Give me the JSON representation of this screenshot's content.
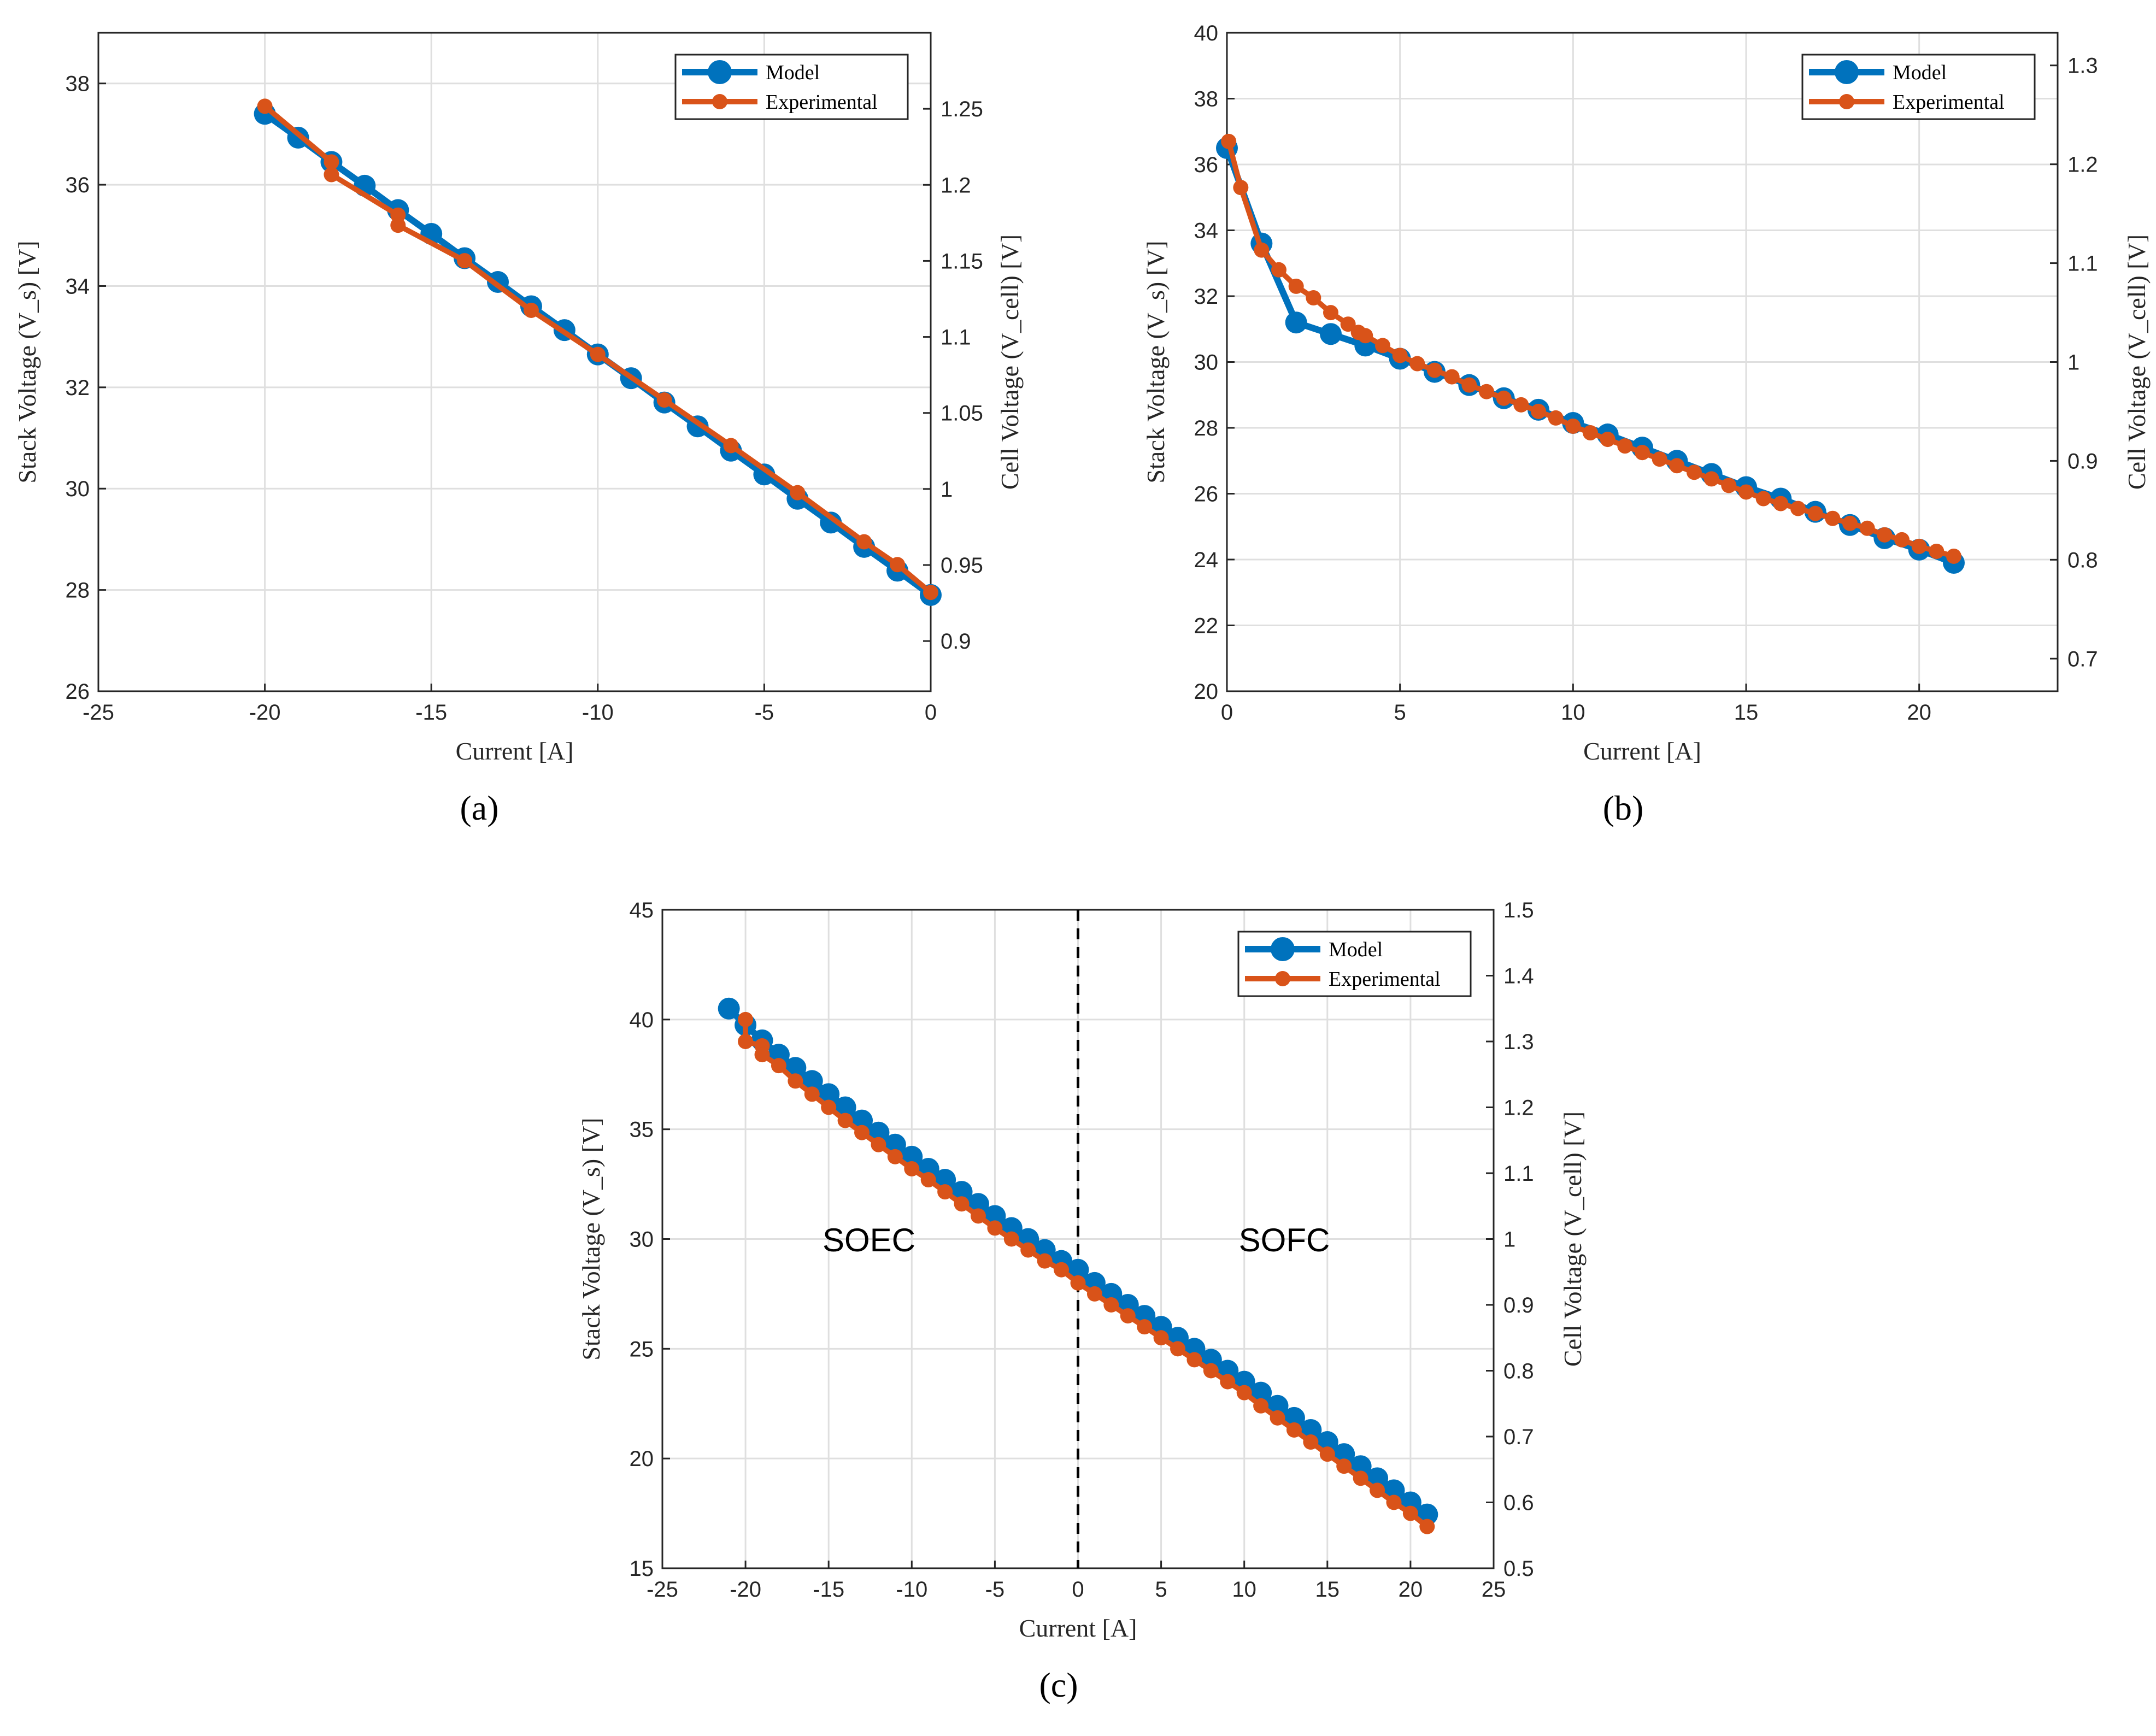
{
  "colors": {
    "model": "#0072BD",
    "experimental": "#D95319",
    "axis": "#262626",
    "grid": "#dfdfdf"
  },
  "chart_data": [
    {
      "type": "line",
      "panel_label": "(a)",
      "xlabel": "Current [A]",
      "ylabel": "Stack Voltage (V_s) [V]",
      "y2label": "Cell Voltage (V_cell) [V]",
      "xlim": [
        -25,
        0
      ],
      "ylim": [
        26,
        39
      ],
      "y2lim": [
        0.867,
        1.3
      ],
      "xticks": [
        -25,
        -20,
        -15,
        -10,
        -5,
        0
      ],
      "yticks": [
        26,
        28,
        30,
        32,
        34,
        36,
        38
      ],
      "y2ticks": [
        0.9,
        0.95,
        1,
        1.05,
        1.1,
        1.15,
        1.2,
        1.25
      ],
      "xtick_labels": [
        "-25",
        "-20",
        "-15",
        "-10",
        "-5",
        "0"
      ],
      "ytick_labels": [
        "26",
        "28",
        "30",
        "32",
        "34",
        "36",
        "38"
      ],
      "y2tick_labels": [
        "0.9",
        "0.95",
        "1",
        "1.05",
        "1.1",
        "1.15",
        "1.2",
        "1.25"
      ],
      "legend": {
        "position": "top-right",
        "entries": [
          "Model",
          "Experimental"
        ]
      },
      "series": [
        {
          "name": "Model",
          "x": [
            -20,
            -19,
            -18,
            -17,
            -16,
            -15,
            -14,
            -13,
            -12,
            -11,
            -10,
            -9,
            -8,
            -7,
            -6,
            -5,
            -4,
            -3,
            -2,
            -1,
            0
          ],
          "y": [
            37.4,
            36.93,
            36.45,
            35.98,
            35.5,
            35.03,
            34.55,
            34.08,
            33.6,
            33.13,
            32.65,
            32.18,
            31.7,
            31.23,
            30.75,
            30.28,
            29.8,
            29.33,
            28.85,
            28.38,
            27.9
          ]
        },
        {
          "name": "Experimental",
          "x": [
            -20,
            -18,
            -18,
            -16,
            -16,
            -14,
            -12,
            -10,
            -8,
            -6,
            -4,
            -2,
            -1,
            0
          ],
          "y": [
            37.55,
            36.45,
            36.2,
            35.4,
            35.2,
            34.5,
            33.52,
            32.65,
            31.75,
            30.85,
            29.92,
            28.95,
            28.5,
            27.95
          ]
        }
      ]
    },
    {
      "type": "line",
      "panel_label": "(b)",
      "xlabel": "Current [A]",
      "ylabel": "Stack Voltage (V_s) [V]",
      "y2label": "Cell Voltage (V_cell) [V]",
      "xlim": [
        0,
        24
      ],
      "ylim": [
        20,
        40
      ],
      "y2lim": [
        0.667,
        1.333
      ],
      "xticks": [
        0,
        5,
        10,
        15,
        20
      ],
      "yticks": [
        20,
        22,
        24,
        26,
        28,
        30,
        32,
        34,
        36,
        38,
        40
      ],
      "y2ticks": [
        0.7,
        0.8,
        0.9,
        1,
        1.1,
        1.2,
        1.3
      ],
      "xtick_labels": [
        "0",
        "5",
        "10",
        "15",
        "20"
      ],
      "ytick_labels": [
        "20",
        "22",
        "24",
        "26",
        "28",
        "30",
        "32",
        "34",
        "36",
        "38",
        "40"
      ],
      "y2tick_labels": [
        "0.7",
        "0.8",
        "0.9",
        "1",
        "1.1",
        "1.2",
        "1.3"
      ],
      "legend": {
        "position": "top-right",
        "entries": [
          "Model",
          "Experimental"
        ]
      },
      "series": [
        {
          "name": "Model",
          "x": [
            0,
            1,
            2,
            3,
            4,
            5,
            6,
            7,
            8,
            9,
            10,
            11,
            12,
            13,
            14,
            15,
            16,
            17,
            18,
            19,
            20,
            21
          ],
          "y": [
            36.5,
            33.6,
            31.2,
            30.85,
            30.5,
            30.1,
            29.7,
            29.3,
            28.9,
            28.55,
            28.15,
            27.8,
            27.4,
            27.0,
            26.6,
            26.2,
            25.85,
            25.45,
            25.05,
            24.65,
            24.3,
            23.9
          ]
        },
        {
          "name": "Experimental",
          "x": [
            0.05,
            0.4,
            1,
            1.5,
            2,
            2.5,
            3,
            3.5,
            3.8,
            4,
            4.5,
            5,
            5.5,
            6,
            6.5,
            7,
            7.5,
            8,
            8.5,
            9,
            9.5,
            10,
            10.5,
            11,
            11.5,
            12,
            12.5,
            13,
            13.5,
            14,
            14.5,
            15,
            15.5,
            16,
            16.5,
            17,
            17.5,
            18,
            18.5,
            19,
            19.5,
            20,
            20.5,
            21
          ],
          "y": [
            36.7,
            35.3,
            33.4,
            32.8,
            32.3,
            31.95,
            31.5,
            31.15,
            30.9,
            30.8,
            30.5,
            30.2,
            29.95,
            29.75,
            29.55,
            29.3,
            29.1,
            28.9,
            28.7,
            28.5,
            28.3,
            28.05,
            27.85,
            27.65,
            27.45,
            27.25,
            27.05,
            26.85,
            26.65,
            26.45,
            26.25,
            26.05,
            25.85,
            25.7,
            25.55,
            25.4,
            25.25,
            25.1,
            24.95,
            24.75,
            24.6,
            24.4,
            24.25,
            24.1
          ]
        }
      ]
    },
    {
      "type": "line",
      "panel_label": "(c)",
      "xlabel": "Current [A]",
      "ylabel": "Stack Voltage (V_s) [V]",
      "y2label": "Cell Voltage (V_cell) [V]",
      "xlim": [
        -25,
        25
      ],
      "ylim": [
        15,
        45
      ],
      "y2lim": [
        0.5,
        1.5
      ],
      "xticks": [
        -25,
        -20,
        -15,
        -10,
        -5,
        0,
        5,
        10,
        15,
        20,
        25
      ],
      "yticks": [
        15,
        20,
        25,
        30,
        35,
        40,
        45
      ],
      "y2ticks": [
        0.5,
        0.6,
        0.7,
        0.8,
        0.9,
        1,
        1.1,
        1.2,
        1.3,
        1.4,
        1.5
      ],
      "xtick_labels": [
        "-25",
        "-20",
        "-15",
        "-10",
        "-5",
        "0",
        "5",
        "10",
        "15",
        "20",
        "25"
      ],
      "ytick_labels": [
        "15",
        "20",
        "25",
        "30",
        "35",
        "40",
        "45"
      ],
      "y2tick_labels": [
        "0.5",
        "0.6",
        "0.7",
        "0.8",
        "0.9",
        "1",
        "1.1",
        "1.2",
        "1.3",
        "1.4",
        "1.5"
      ],
      "legend": {
        "position": "top-right",
        "entries": [
          "Model",
          "Experimental"
        ]
      },
      "annotations": [
        "SOEC",
        "SOFC"
      ],
      "vline_x": 0,
      "series": [
        {
          "name": "Model",
          "x": [
            -21,
            -20,
            -19,
            -18,
            -17,
            -16,
            -15,
            -14,
            -13,
            -12,
            -11,
            -10,
            -9,
            -8,
            -7,
            -6,
            -5,
            -4,
            -3,
            -2,
            -1,
            0,
            1,
            2,
            3,
            4,
            5,
            6,
            7,
            8,
            9,
            10,
            11,
            12,
            13,
            14,
            15,
            16,
            17,
            18,
            19,
            20,
            21
          ],
          "y": [
            40.5,
            39.75,
            39.05,
            38.4,
            37.8,
            37.2,
            36.6,
            36.0,
            35.4,
            34.85,
            34.3,
            33.75,
            33.2,
            32.7,
            32.15,
            31.6,
            31.05,
            30.5,
            30.0,
            29.5,
            29.0,
            28.6,
            28.0,
            27.5,
            27.0,
            26.5,
            26.0,
            25.5,
            25.0,
            24.5,
            24.0,
            23.5,
            23.0,
            22.4,
            21.85,
            21.3,
            20.75,
            20.2,
            19.65,
            19.1,
            18.55,
            18.0,
            17.45
          ]
        },
        {
          "name": "Experimental",
          "x": [
            -20,
            -20,
            -19,
            -19,
            -18,
            -17,
            -16,
            -15,
            -14,
            -13,
            -12,
            -11,
            -10,
            -9,
            -8,
            -7,
            -6,
            -5,
            -4,
            -3,
            -2,
            -1,
            0,
            1,
            2,
            3,
            4,
            5,
            6,
            7,
            8,
            9,
            10,
            11,
            12,
            13,
            14,
            15,
            16,
            17,
            18,
            19,
            20,
            21
          ],
          "y": [
            40.0,
            39.0,
            38.8,
            38.4,
            37.9,
            37.2,
            36.6,
            36.0,
            35.4,
            34.85,
            34.3,
            33.75,
            33.2,
            32.7,
            32.15,
            31.6,
            31.05,
            30.5,
            30.0,
            29.5,
            29.0,
            28.6,
            28.0,
            27.5,
            27.0,
            26.5,
            26.0,
            25.5,
            25.0,
            24.5,
            24.0,
            23.5,
            23.0,
            22.4,
            21.85,
            21.3,
            20.75,
            20.2,
            19.65,
            19.1,
            18.55,
            18.0,
            17.5,
            16.9
          ]
        }
      ]
    }
  ]
}
